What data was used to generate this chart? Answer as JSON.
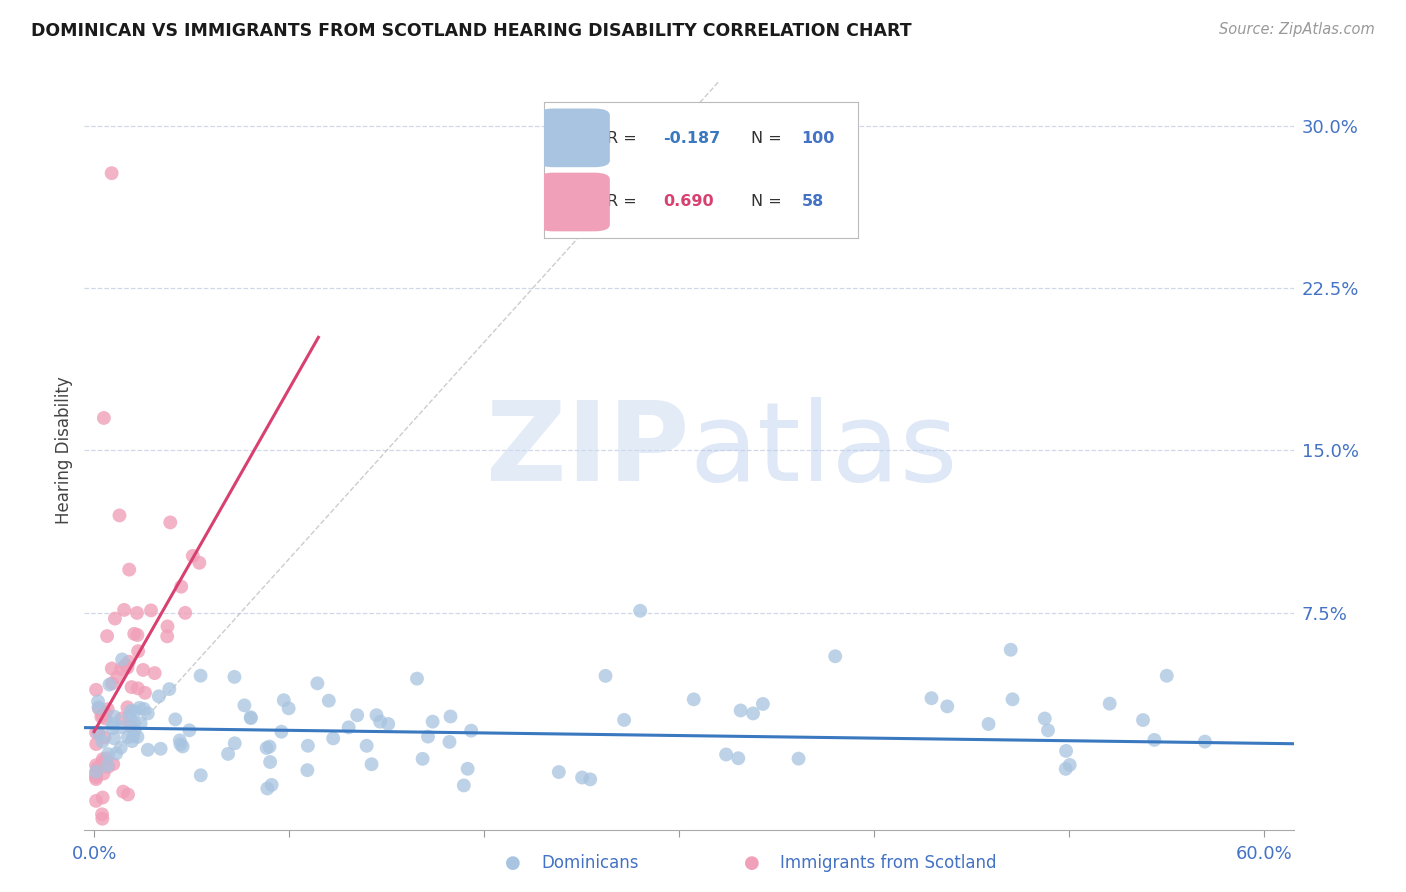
{
  "title": "DOMINICAN VS IMMIGRANTS FROM SCOTLAND HEARING DISABILITY CORRELATION CHART",
  "source": "Source: ZipAtlas.com",
  "ylabel": "Hearing Disability",
  "xlim": [
    -0.005,
    0.615
  ],
  "ylim": [
    -0.025,
    0.325
  ],
  "yticks": [
    0.075,
    0.15,
    0.225,
    0.3
  ],
  "ytick_labels": [
    "7.5%",
    "15.0%",
    "22.5%",
    "30.0%"
  ],
  "blue_color": "#a8c4e0",
  "pink_color": "#f0a0b8",
  "blue_line_color": "#3a78c0",
  "pink_line_color": "#d84070",
  "tick_label_color": "#4472c4",
  "background_color": "#ffffff",
  "grid_color": "#d0d8e8",
  "blue_seed": 7,
  "pink_seed": 13,
  "blue_N": 100,
  "pink_N": 58
}
